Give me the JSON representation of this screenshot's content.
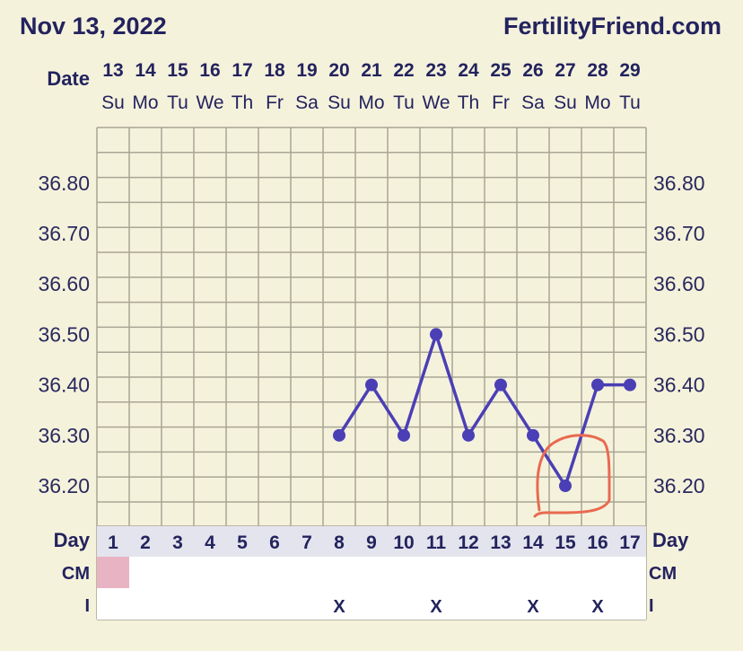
{
  "header": {
    "date_title": "Nov 13, 2022",
    "site": "FertilityFriend.com"
  },
  "labels": {
    "date": "Date",
    "day": "Day",
    "cm": "CM",
    "i": "I"
  },
  "colors": {
    "background": "#f5f2dc",
    "grid": "#a9a594",
    "line": "#4a3fb5",
    "cycle_day_cell": "#e4e4ee",
    "period_mark": "#e8b3c3",
    "annotation": "#e86a50"
  },
  "chart_data": {
    "type": "line",
    "x": [
      "13",
      "14",
      "15",
      "16",
      "17",
      "18",
      "19",
      "20",
      "21",
      "22",
      "23",
      "24",
      "25",
      "26",
      "27",
      "28",
      "29"
    ],
    "weekdays": [
      "Su",
      "Mo",
      "Tu",
      "We",
      "Th",
      "Fr",
      "Sa",
      "Su",
      "Mo",
      "Tu",
      "We",
      "Th",
      "Fr",
      "Sa",
      "Su",
      "Mo",
      "Tu"
    ],
    "cycle_days": [
      "1",
      "2",
      "3",
      "4",
      "5",
      "6",
      "7",
      "8",
      "9",
      "10",
      "11",
      "12",
      "13",
      "14",
      "15",
      "16",
      "17"
    ],
    "series": [
      {
        "values": [
          null,
          null,
          null,
          null,
          null,
          null,
          null,
          36.3,
          36.4,
          36.3,
          36.5,
          36.3,
          36.4,
          36.3,
          36.2,
          36.4,
          36.4
        ]
      }
    ],
    "y_ticks": [
      "36.80",
      "36.70",
      "36.60",
      "36.50",
      "36.40",
      "36.30",
      "36.20"
    ],
    "ylim": [
      36.12,
      36.91
    ],
    "cm_marks": [
      true,
      false,
      false,
      false,
      false,
      false,
      false,
      false,
      false,
      false,
      false,
      false,
      false,
      false,
      false,
      false,
      false
    ],
    "intercourse": [
      "",
      "",
      "",
      "",
      "",
      "",
      "",
      "X",
      "",
      "",
      "X",
      "",
      "",
      "X",
      "",
      "X",
      ""
    ],
    "grid": true
  }
}
